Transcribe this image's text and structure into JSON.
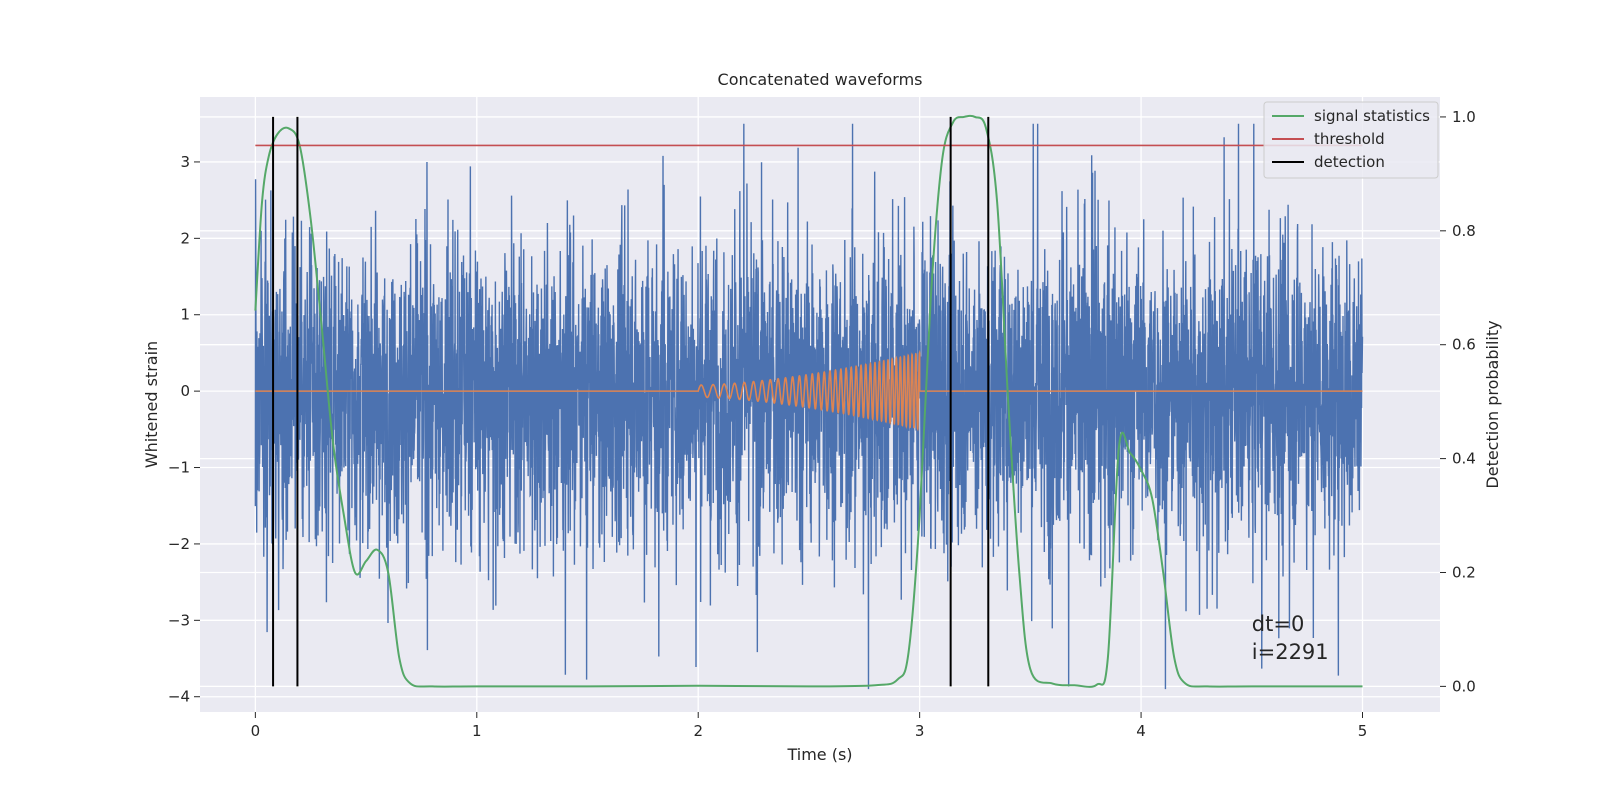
{
  "chart_data": {
    "type": "line",
    "title": "Concatenated waveforms",
    "xlabel": "Time (s)",
    "ylabel": "Whitened strain",
    "y2label": "Detection probability",
    "xlim": [
      -0.25,
      5.35
    ],
    "ylim": [
      -4.2,
      3.85
    ],
    "y2lim": [
      -0.045,
      1.035
    ],
    "xticks": [
      0,
      1,
      2,
      3,
      4,
      5
    ],
    "yticks": [
      -4,
      -3,
      -2,
      -1,
      0,
      1,
      2,
      3
    ],
    "y2ticks": [
      0.0,
      0.2,
      0.4,
      0.6,
      0.8,
      1.0
    ],
    "ytick_labels": [
      "−4",
      "−3",
      "−2",
      "−1",
      "0",
      "1",
      "2",
      "3"
    ],
    "y2tick_labels": [
      "0.0",
      "0.2",
      "0.4",
      "0.6",
      "0.8",
      "1.0"
    ],
    "grid": true,
    "legend_position": "top-right",
    "noise": {
      "x_range": [
        0,
        5
      ],
      "typical_amplitude": 1.6,
      "max": 3.5,
      "min": -3.9,
      "color": "#4c72b0"
    },
    "chirp": {
      "x_range": [
        2,
        3
      ],
      "start_amplitude": 0.08,
      "end_amplitude": 0.5,
      "start_freq_hz": 18,
      "end_freq_hz": 60,
      "color": "#dd8452"
    },
    "series": [
      {
        "name": "signal statistics",
        "axis": "right",
        "color": "#55a868",
        "x": [
          0.0,
          0.03,
          0.06,
          0.1,
          0.15,
          0.2,
          0.25,
          0.3,
          0.35,
          0.4,
          0.45,
          0.5,
          0.55,
          0.6,
          0.65,
          0.7,
          0.8,
          1.0,
          1.5,
          2.0,
          2.5,
          2.8,
          2.9,
          2.95,
          3.0,
          3.05,
          3.1,
          3.15,
          3.2,
          3.25,
          3.3,
          3.35,
          3.4,
          3.45,
          3.5,
          3.6,
          3.7,
          3.8,
          3.85,
          3.9,
          3.95,
          4.0,
          4.05,
          4.1,
          4.15,
          4.2,
          4.3,
          4.5,
          5.0
        ],
        "y": [
          0.66,
          0.85,
          0.93,
          0.97,
          0.98,
          0.95,
          0.82,
          0.63,
          0.43,
          0.3,
          0.2,
          0.22,
          0.24,
          0.2,
          0.05,
          0.005,
          0.0,
          0.0,
          0.0,
          0.001,
          0.0,
          0.002,
          0.012,
          0.06,
          0.3,
          0.68,
          0.92,
          0.99,
          1.0,
          1.0,
          0.98,
          0.85,
          0.5,
          0.2,
          0.03,
          0.005,
          0.002,
          0.003,
          0.05,
          0.42,
          0.41,
          0.38,
          0.33,
          0.2,
          0.05,
          0.005,
          0.0,
          0.0,
          0.0
        ]
      },
      {
        "name": "threshold",
        "axis": "right",
        "color": "#c44e52",
        "x": [
          0,
          5
        ],
        "y": [
          0.95,
          0.95
        ]
      },
      {
        "name": "detection",
        "axis": "right",
        "color": "#000000",
        "x": [
          0.08,
          0.19,
          3.14,
          3.31
        ],
        "y_range": [
          0.0,
          1.0
        ]
      }
    ],
    "annotations": [
      "dt=0",
      "i=2291"
    ]
  }
}
